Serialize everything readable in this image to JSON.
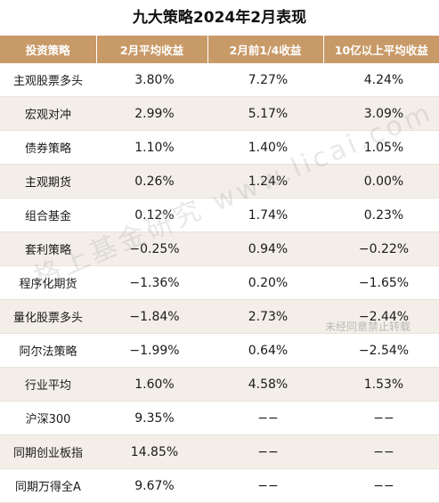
{
  "title": "九大策略2024年2月表现",
  "table": {
    "headers": [
      "投资策略",
      "2月平均收益",
      "2月前1/4收益",
      "10亿以上平均收益"
    ],
    "rows": [
      [
        "主观股票多头",
        "3.80%",
        "7.27%",
        "4.24%"
      ],
      [
        "宏观对冲",
        "2.99%",
        "5.17%",
        "3.09%"
      ],
      [
        "债券策略",
        "1.10%",
        "1.40%",
        "1.05%"
      ],
      [
        "主观期货",
        "0.26%",
        "1.24%",
        "0.00%"
      ],
      [
        "组合基金",
        "0.12%",
        "1.74%",
        "0.23%"
      ],
      [
        "套利策略",
        "−0.25%",
        "0.94%",
        "−0.22%"
      ],
      [
        "程序化期货",
        "−1.36%",
        "0.20%",
        "−1.65%"
      ],
      [
        "量化股票多头",
        "−1.84%",
        "2.73%",
        "−2.44%"
      ],
      [
        "阿尔法策略",
        "−1.99%",
        "0.64%",
        "−2.54%"
      ],
      [
        "行业平均",
        "1.60%",
        "4.58%",
        "1.53%"
      ],
      [
        "沪深300",
        "9.35%",
        "−−",
        "−−"
      ],
      [
        "同期创业板指",
        "14.85%",
        "−−",
        "−−"
      ],
      [
        "同期万得全A",
        "9.67%",
        "−−",
        "−−"
      ]
    ]
  },
  "watermark": {
    "main": "格上基金研究 www.licai.com",
    "notice": "未经同意禁止转载"
  }
}
